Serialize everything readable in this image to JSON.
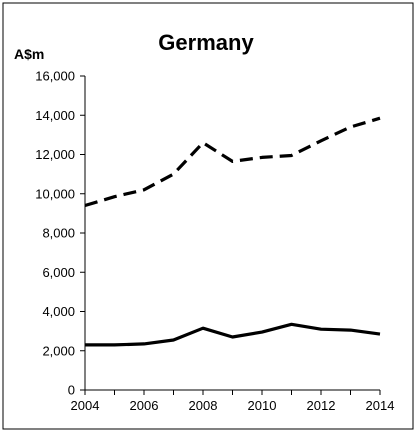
{
  "chart_data": {
    "type": "line",
    "title": "Germany",
    "unit_label": "A$m",
    "xlabel": "",
    "ylabel": "",
    "x": [
      2004,
      2005,
      2006,
      2007,
      2008,
      2009,
      2010,
      2011,
      2012,
      2013,
      2014
    ],
    "xlim": [
      2004,
      2014
    ],
    "ylim": [
      0,
      16000
    ],
    "x_ticks": [
      "2004",
      "2006",
      "2008",
      "2010",
      "2012",
      "2014"
    ],
    "y_ticks": [
      "0",
      "2,000",
      "4,000",
      "6,000",
      "8,000",
      "10,000",
      "12,000",
      "14,000",
      "16,000"
    ],
    "grid": false,
    "legend": "none",
    "series": [
      {
        "style": "dashed",
        "color": "#000000",
        "values": [
          9400,
          9850,
          10200,
          11000,
          12600,
          11650,
          11850,
          11950,
          12700,
          13400,
          13850
        ]
      },
      {
        "style": "solid",
        "color": "#000000",
        "values": [
          2300,
          2300,
          2350,
          2550,
          3150,
          2700,
          2950,
          3350,
          3100,
          3050,
          2850
        ]
      }
    ]
  }
}
